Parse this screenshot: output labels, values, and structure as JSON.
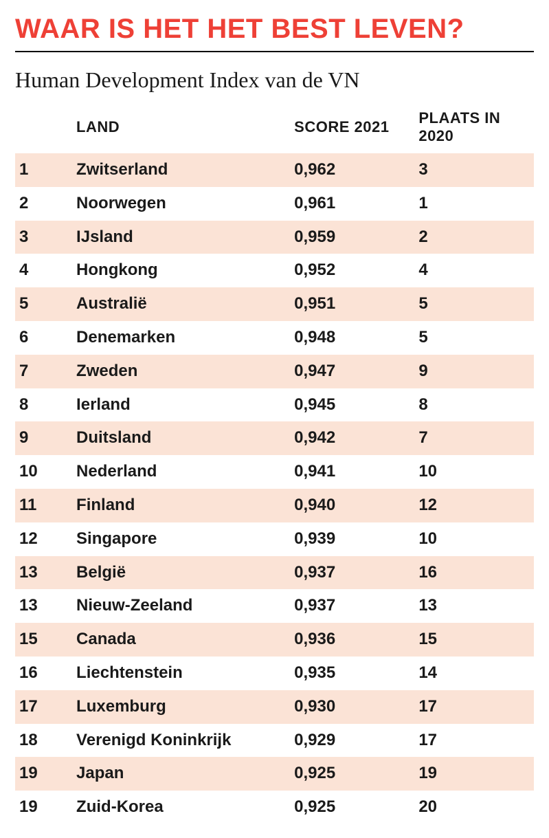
{
  "title": "WAAR IS HET HET BEST LEVEN?",
  "subtitle": "Human Development Index van de VN",
  "colors": {
    "title": "#ee4036",
    "row_odd_bg": "#fbe3d6",
    "row_even_bg": "#ffffff",
    "text": "#1a1a1a",
    "rule": "#000000"
  },
  "table": {
    "columns": [
      {
        "key": "rank",
        "label": ""
      },
      {
        "key": "land",
        "label": "LAND"
      },
      {
        "key": "score",
        "label": "SCORE 2021"
      },
      {
        "key": "place",
        "label": "PLAATS IN 2020"
      }
    ],
    "rows": [
      {
        "rank": "1",
        "land": "Zwitserland",
        "score": "0,962",
        "place": "3"
      },
      {
        "rank": "2",
        "land": "Noorwegen",
        "score": "0,961",
        "place": "1"
      },
      {
        "rank": "3",
        "land": "IJsland",
        "score": "0,959",
        "place": "2"
      },
      {
        "rank": "4",
        "land": "Hongkong",
        "score": "0,952",
        "place": "4"
      },
      {
        "rank": "5",
        "land": "Australië",
        "score": "0,951",
        "place": "5"
      },
      {
        "rank": "6",
        "land": "Denemarken",
        "score": "0,948",
        "place": "5"
      },
      {
        "rank": "7",
        "land": "Zweden",
        "score": "0,947",
        "place": "9"
      },
      {
        "rank": "8",
        "land": "Ierland",
        "score": "0,945",
        "place": "8"
      },
      {
        "rank": "9",
        "land": "Duitsland",
        "score": "0,942",
        "place": "7"
      },
      {
        "rank": "10",
        "land": "Nederland",
        "score": "0,941",
        "place": "10"
      },
      {
        "rank": "11",
        "land": "Finland",
        "score": "0,940",
        "place": "12"
      },
      {
        "rank": "12",
        "land": "Singapore",
        "score": "0,939",
        "place": "10"
      },
      {
        "rank": "13",
        "land": "België",
        "score": "0,937",
        "place": "16"
      },
      {
        "rank": "13",
        "land": "Nieuw-Zeeland",
        "score": "0,937",
        "place": "13"
      },
      {
        "rank": "15",
        "land": "Canada",
        "score": "0,936",
        "place": "15"
      },
      {
        "rank": "16",
        "land": "Liechtenstein",
        "score": "0,935",
        "place": "14"
      },
      {
        "rank": "17",
        "land": "Luxemburg",
        "score": "0,930",
        "place": "17"
      },
      {
        "rank": "18",
        "land": "Verenigd Koninkrijk",
        "score": "0,929",
        "place": "17"
      },
      {
        "rank": "19",
        "land": "Japan",
        "score": "0,925",
        "place": "19"
      },
      {
        "rank": "19",
        "land": "Zuid-Korea",
        "score": "0,925",
        "place": "20"
      }
    ]
  }
}
